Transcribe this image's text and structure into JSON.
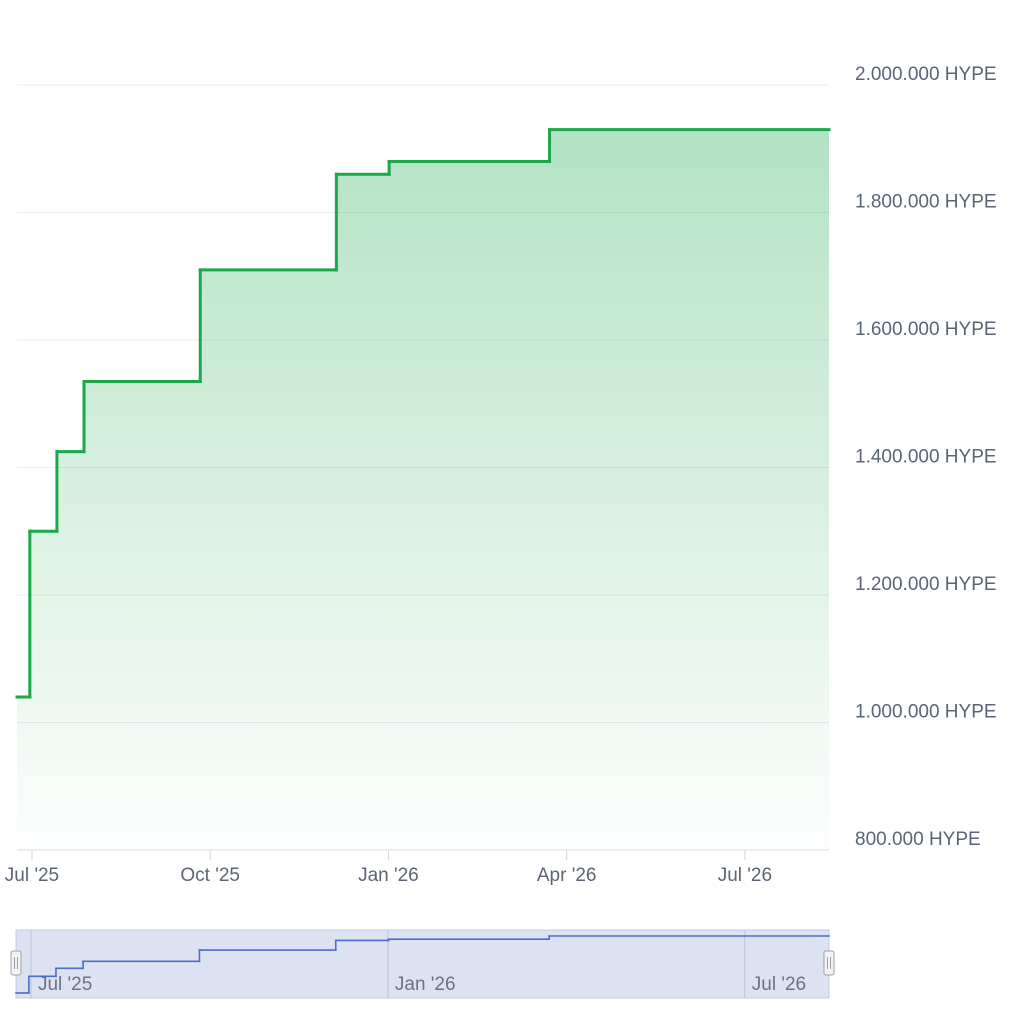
{
  "chart_data": {
    "type": "step-area",
    "x": [
      2025.479,
      2025.497,
      2025.535,
      2025.573,
      2025.736,
      2025.927,
      2026.001,
      2026.226
    ],
    "series": [
      {
        "name": "HYPE",
        "color": "#1aa84a",
        "values": [
          1040000,
          1300000,
          1425000,
          1535000,
          1710000,
          1860000,
          1880000,
          1930000
        ]
      }
    ],
    "xlim": [
      2025.479,
      2026.618
    ],
    "xticks": [
      {
        "value": 2025.5,
        "label": "Jul '25"
      },
      {
        "value": 2025.75,
        "label": "Oct '25"
      },
      {
        "value": 2026.0,
        "label": "Jan '26"
      },
      {
        "value": 2026.25,
        "label": "Apr '26"
      },
      {
        "value": 2026.5,
        "label": "Jul '26"
      }
    ],
    "ylim": [
      800000,
      2000000
    ],
    "yticks": [
      {
        "value": 800000,
        "label": "800.000 HYPE"
      },
      {
        "value": 1000000,
        "label": "1.000.000 HYPE"
      },
      {
        "value": 1200000,
        "label": "1.200.000 HYPE"
      },
      {
        "value": 1400000,
        "label": "1.400.000 HYPE"
      },
      {
        "value": 1600000,
        "label": "1.600.000 HYPE"
      },
      {
        "value": 1800000,
        "label": "1.800.000 HYPE"
      },
      {
        "value": 2000000,
        "label": "2.000.000 HYPE"
      }
    ],
    "grid": true,
    "navigator": {
      "color": "#4a6fc7",
      "xticks": [
        {
          "value": 2025.5,
          "label": "Jul '25"
        },
        {
          "value": 2026.0,
          "label": "Jan '26"
        },
        {
          "value": 2026.5,
          "label": "Jul '26"
        }
      ]
    }
  }
}
